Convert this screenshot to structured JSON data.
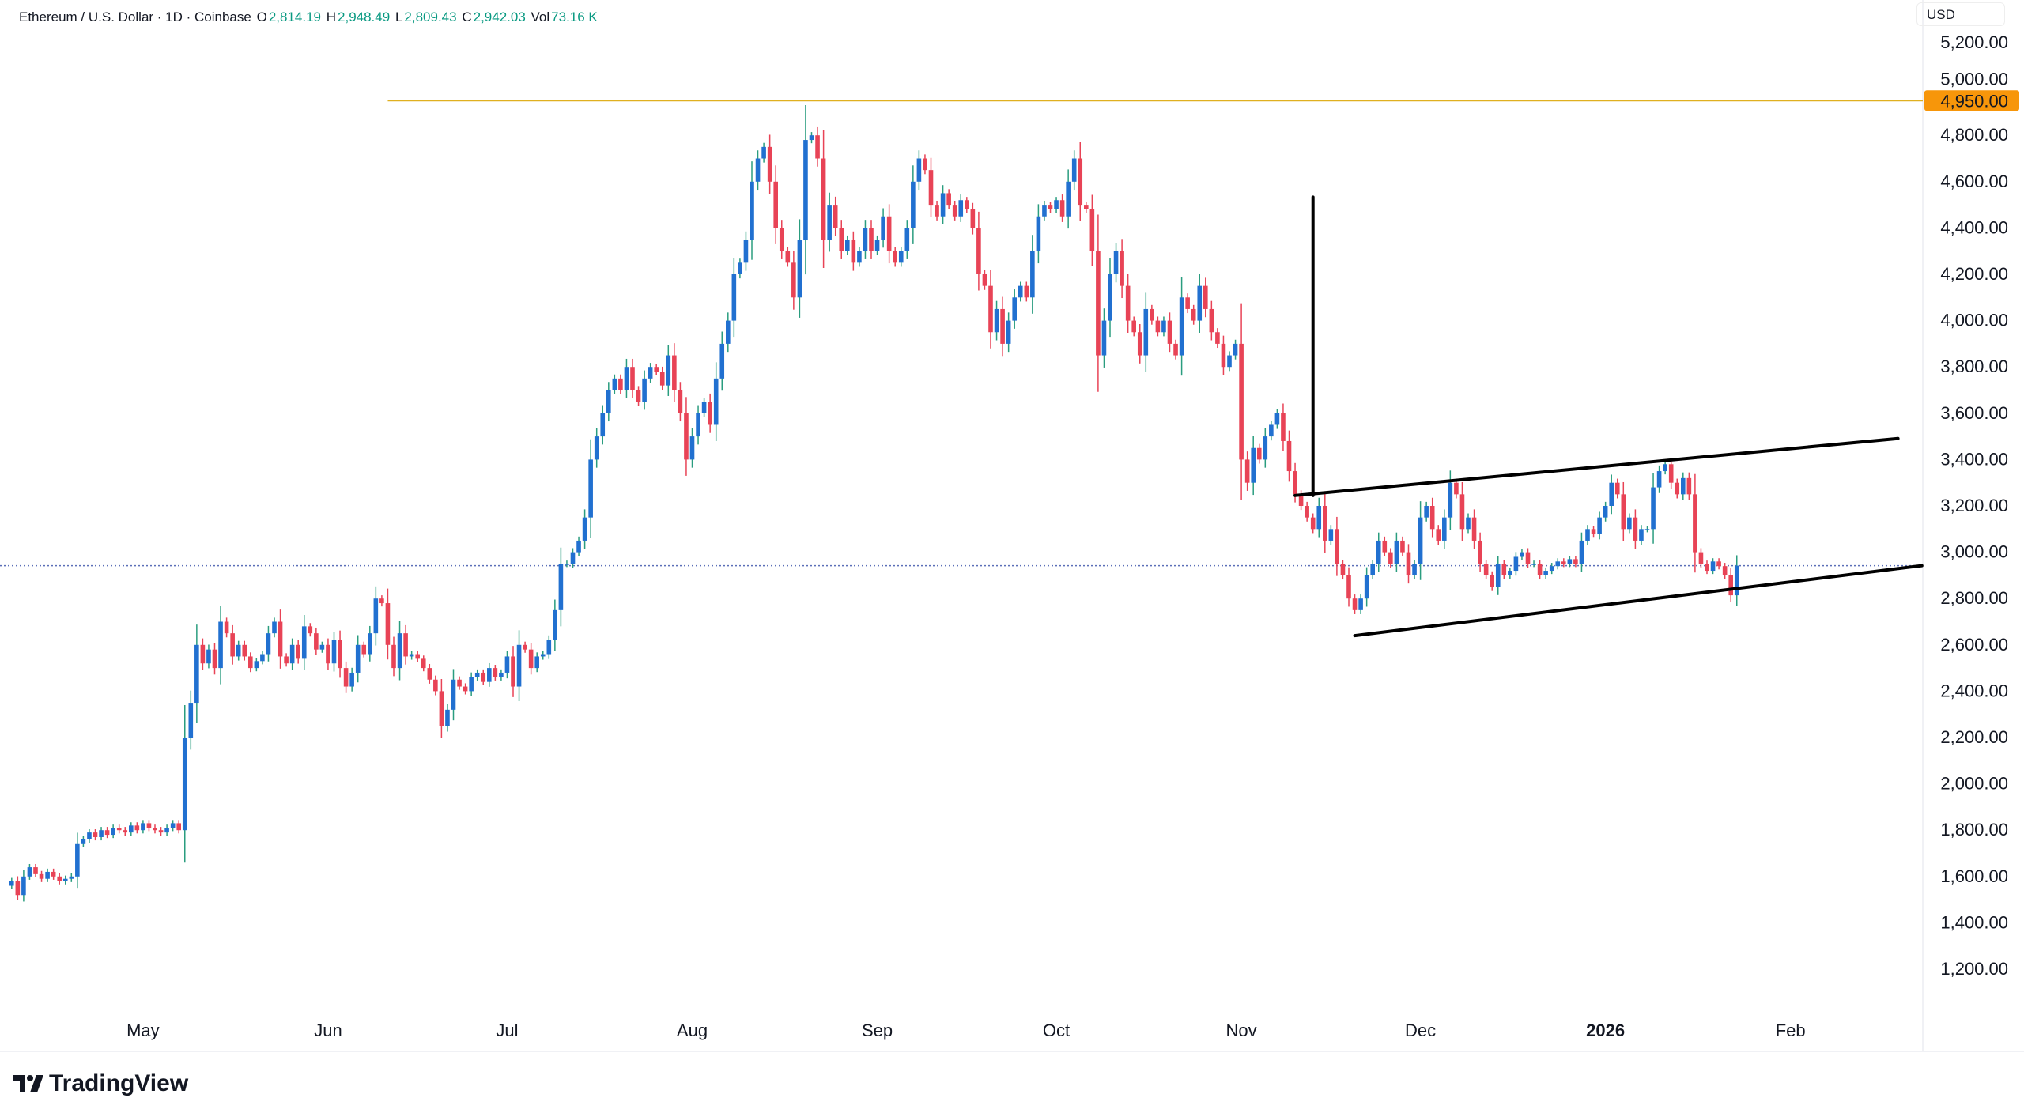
{
  "header": {
    "symbol": "Ethereum / U.S. Dollar · 1D · Coinbase",
    "o_label": "O",
    "o": "2,814.19",
    "h_label": "H",
    "h": "2,948.49",
    "l_label": "L",
    "l": "2,809.43",
    "c_label": "C",
    "c": "2,942.03",
    "vol_label": "Vol",
    "vol": "73.16 K"
  },
  "currency": "USD",
  "branding": "TradingView",
  "chart_data": {
    "type": "candlestick",
    "interval": "1D",
    "x_range": [
      "2025-04-09",
      "2026-01-23"
    ],
    "ylim": [
      1000,
      5300
    ],
    "y_ticks": [
      1200,
      1400,
      1600,
      1800,
      2000,
      2200,
      2400,
      2600,
      2800,
      3000,
      3200,
      3400,
      3600,
      3800,
      4000,
      4200,
      4400,
      4600,
      4800,
      5000,
      5200
    ],
    "x_ticks": [
      {
        "label": "May",
        "date": "2025-05-01",
        "bold": false
      },
      {
        "label": "Jun",
        "date": "2025-06-01",
        "bold": false
      },
      {
        "label": "Jul",
        "date": "2025-07-01",
        "bold": false
      },
      {
        "label": "Aug",
        "date": "2025-08-01",
        "bold": false
      },
      {
        "label": "Sep",
        "date": "2025-09-01",
        "bold": false
      },
      {
        "label": "Oct",
        "date": "2025-10-01",
        "bold": false
      },
      {
        "label": "Nov",
        "date": "2025-11-01",
        "bold": false
      },
      {
        "label": "Dec",
        "date": "2025-12-01",
        "bold": false
      },
      {
        "label": "2026",
        "date": "2026-01-01",
        "bold": true
      },
      {
        "label": "Feb",
        "date": "2026-02-01",
        "bold": false
      }
    ],
    "colors": {
      "up": "#2170d0",
      "up_wick": "#2a9d7f",
      "down": "#e84356",
      "level": "#e0b020",
      "level_label_bg": "#f7960a",
      "current": "#5b6fb8",
      "drawing": "#000000"
    },
    "closes": [
      1580,
      1520,
      1600,
      1640,
      1610,
      1590,
      1620,
      1600,
      1580,
      1590,
      1600,
      1740,
      1760,
      1790,
      1770,
      1800,
      1780,
      1810,
      1800,
      1790,
      1820,
      1800,
      1830,
      1810,
      1800,
      1790,
      1810,
      1830,
      1800,
      2200,
      2350,
      2600,
      2520,
      2580,
      2500,
      2700,
      2650,
      2550,
      2600,
      2550,
      2500,
      2530,
      2560,
      2650,
      2700,
      2550,
      2520,
      2600,
      2540,
      2680,
      2650,
      2580,
      2600,
      2520,
      2620,
      2500,
      2420,
      2480,
      2600,
      2560,
      2650,
      2800,
      2780,
      2600,
      2500,
      2650,
      2550,
      2560,
      2540,
      2500,
      2450,
      2400,
      2250,
      2320,
      2450,
      2420,
      2400,
      2460,
      2480,
      2440,
      2500,
      2460,
      2480,
      2550,
      2420,
      2600,
      2580,
      2500,
      2550,
      2560,
      2620,
      2750,
      2950,
      2950,
      3000,
      3050,
      3150,
      3400,
      3500,
      3600,
      3700,
      3750,
      3700,
      3800,
      3700,
      3650,
      3750,
      3800,
      3780,
      3720,
      3850,
      3700,
      3600,
      3400,
      3500,
      3600,
      3650,
      3550,
      3750,
      3900,
      4000,
      4200,
      4250,
      4350,
      4600,
      4700,
      4750,
      4600,
      4400,
      4300,
      4250,
      4100,
      4350,
      4780,
      4800,
      4700,
      4350,
      4500,
      4400,
      4300,
      4350,
      4250,
      4300,
      4400,
      4300,
      4350,
      4450,
      4300,
      4250,
      4300,
      4400,
      4600,
      4700,
      4650,
      4500,
      4450,
      4550,
      4500,
      4450,
      4520,
      4480,
      4400,
      4200,
      4150,
      3950,
      4050,
      3900,
      4000,
      4100,
      4150,
      4100,
      4300,
      4450,
      4500,
      4480,
      4520,
      4450,
      4600,
      4700,
      4500,
      4480,
      4300,
      3850,
      4000,
      4200,
      4300,
      4150,
      4000,
      3950,
      3850,
      4050,
      4000,
      3950,
      4000,
      3900,
      3850,
      4100,
      4050,
      4000,
      4150,
      4050,
      3950,
      3900,
      3800,
      3850,
      3900,
      3400,
      3300,
      3450,
      3400,
      3500,
      3550,
      3600,
      3480,
      3350,
      3250,
      3200,
      3150,
      3100,
      3200,
      3050,
      3100,
      2950,
      2900,
      2800,
      2750,
      2800,
      2900,
      2950,
      3050,
      3000,
      2950,
      3050,
      3000,
      2900,
      2950,
      3150,
      3200,
      3100,
      3050,
      3150,
      3300,
      3250,
      3100,
      3150,
      3050,
      2950,
      2900,
      2850,
      2950,
      2900,
      2920,
      2980,
      3000,
      2950,
      2950,
      2900,
      2920,
      2940,
      2960,
      2950,
      2970,
      2950,
      3050,
      3100,
      3080,
      3150,
      3200,
      3300,
      3250,
      3100,
      3150,
      3050,
      3100,
      3100,
      3280,
      3350,
      3380,
      3300,
      3250,
      3320,
      3250,
      3000,
      2950,
      2920,
      2960,
      2940,
      2900,
      2814,
      2942
    ],
    "first_open": 1560,
    "horizontal_level": {
      "price": 4950,
      "label": "4,950.00",
      "from": "2025-06-11"
    },
    "current_price": 2942.03,
    "drawings": [
      {
        "name": "flagpole",
        "from": {
          "date": "2025-11-13",
          "price": 4533
        },
        "to": {
          "date": "2025-11-13",
          "price": 3245
        }
      },
      {
        "name": "channel-upper",
        "from": {
          "date": "2025-11-10",
          "price": 3245
        },
        "to": {
          "date": "2026-02-19",
          "price": 3491
        }
      },
      {
        "name": "channel-lower",
        "from": {
          "date": "2025-11-20",
          "price": 2640
        },
        "to": {
          "date": "2026-02-23",
          "price": 2942
        }
      }
    ]
  }
}
